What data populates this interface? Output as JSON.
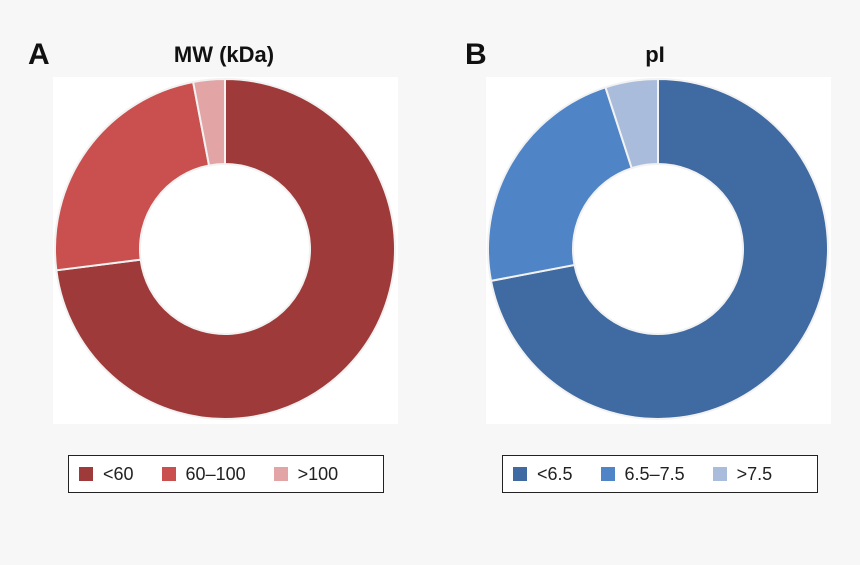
{
  "chart_data": [
    {
      "type": "pie",
      "variant": "donut",
      "panel_label": "A",
      "title": "MW (kDa)",
      "categories": [
        "<60",
        "60–100",
        ">100"
      ],
      "values": [
        73,
        24,
        3
      ],
      "unit": "%",
      "colors": [
        "#9e3b3a",
        "#c9504e",
        "#e2a4a4"
      ],
      "legend_position": "bottom"
    },
    {
      "type": "pie",
      "variant": "donut",
      "panel_label": "B",
      "title": "pI",
      "categories": [
        "<6.5",
        "6.5–7.5",
        ">7.5"
      ],
      "values": [
        72,
        23,
        5
      ],
      "unit": "%",
      "colors": [
        "#3f6aa2",
        "#4f84c6",
        "#a9bcdc"
      ],
      "legend_position": "bottom"
    }
  ]
}
